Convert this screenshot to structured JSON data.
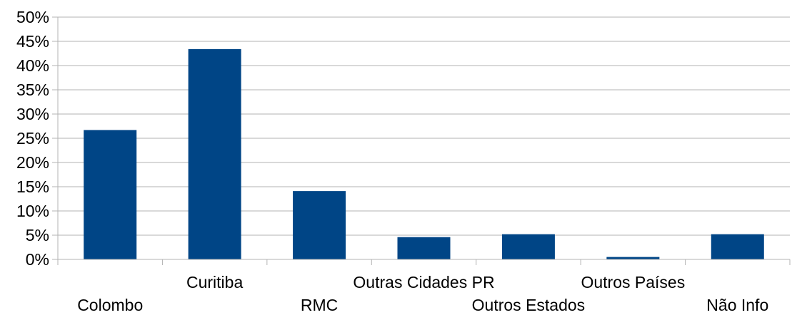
{
  "chart_data": {
    "type": "bar",
    "title": "",
    "xlabel": "",
    "ylabel": "",
    "categories": [
      "Colombo",
      "Curitiba",
      "RMC",
      "Outras Cidades PR",
      "Outros Estados",
      "Outros Países",
      "Não Info"
    ],
    "values": [
      0.267,
      0.434,
      0.141,
      0.046,
      0.052,
      0.005,
      0.052
    ],
    "ylim": [
      0,
      0.5
    ],
    "ytick_values": [
      0,
      0.05,
      0.1,
      0.15,
      0.2,
      0.25,
      0.3,
      0.35,
      0.4,
      0.45,
      0.5
    ],
    "ytick_labels": [
      "0%",
      "5%",
      "10%",
      "15%",
      "20%",
      "25%",
      "30%",
      "35%",
      "40%",
      "45%",
      "50%"
    ],
    "grid": true,
    "legend": "none",
    "colors": {
      "bar": "#004586",
      "grid": "#b3b3b3",
      "axis": "#b3b3b3"
    }
  }
}
